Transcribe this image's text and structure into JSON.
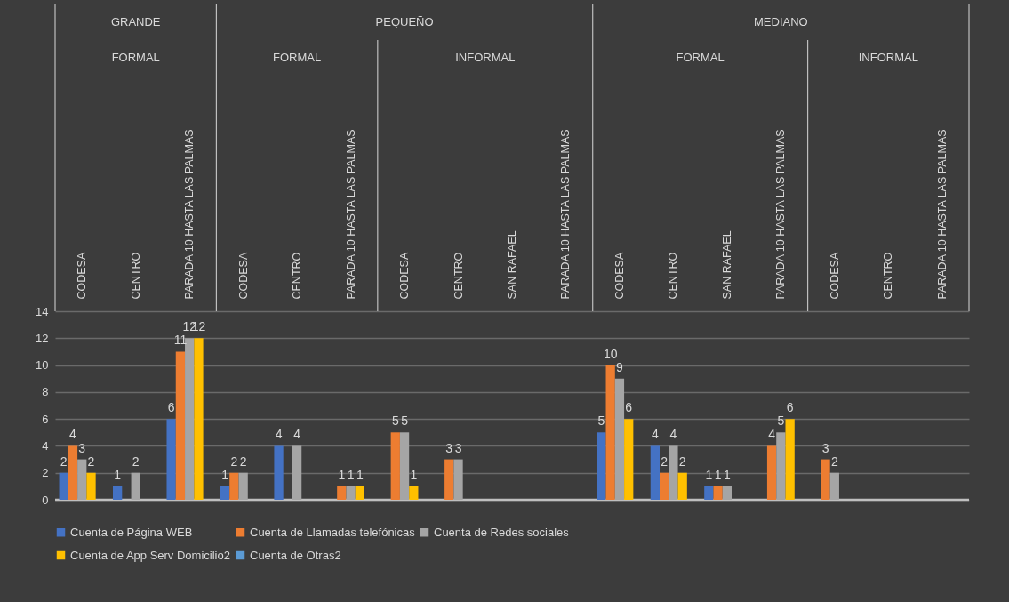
{
  "chart_data": {
    "type": "bar",
    "categories": [
      "CODESA",
      "CENTRO",
      "PARADA  10 HASTA LAS PALMAS",
      "CODESA",
      "CENTRO",
      "PARADA  10 HASTA LAS PALMAS",
      "CODESA",
      "CENTRO",
      "SAN RAFAEL",
      "PARADA  10 HASTA LAS PALMAS",
      "CODESA",
      "CENTRO",
      "SAN RAFAEL",
      "PARADA  10 HASTA LAS PALMAS",
      "CODESA",
      "CENTRO",
      "PARADA  10 HASTA LAS PALMAS"
    ],
    "series": [
      {
        "name": "Cuenta de Página WEB",
        "color": "#4472c4",
        "values": [
          2,
          1,
          6,
          1,
          4,
          null,
          null,
          null,
          null,
          null,
          5,
          4,
          1,
          null,
          null,
          null,
          null
        ]
      },
      {
        "name": "Cuenta de Llamadas telefónicas",
        "color": "#ed7d31",
        "values": [
          4,
          null,
          11,
          2,
          null,
          1,
          5,
          3,
          null,
          null,
          10,
          2,
          1,
          4,
          3,
          null,
          null
        ]
      },
      {
        "name": "Cuenta de Redes sociales",
        "color": "#a5a5a5",
        "values": [
          3,
          2,
          12,
          2,
          4,
          1,
          5,
          3,
          null,
          null,
          9,
          4,
          1,
          5,
          2,
          null,
          null
        ]
      },
      {
        "name": "Cuenta de App Serv Domicilio2",
        "color": "#ffc000",
        "values": [
          2,
          null,
          12,
          null,
          null,
          1,
          1,
          null,
          null,
          null,
          6,
          2,
          null,
          6,
          null,
          null,
          null
        ]
      },
      {
        "name": "Cuenta de Otras2",
        "color": "#5b9bd5",
        "values": [
          null,
          null,
          null,
          null,
          null,
          null,
          null,
          null,
          null,
          null,
          null,
          null,
          null,
          null,
          null,
          null,
          null
        ]
      }
    ],
    "ylim": [
      0,
      14
    ],
    "yticks": [
      0,
      2,
      4,
      6,
      8,
      10,
      12,
      14
    ],
    "grid": "y",
    "legend": "bottom",
    "data_labels": true,
    "annotations": [
      "GRANDE",
      "PEQUEÑO",
      "MEDIANO",
      "FORMAL",
      "FORMAL",
      "INFORMAL",
      "FORMAL",
      "INFORMAL"
    ]
  }
}
